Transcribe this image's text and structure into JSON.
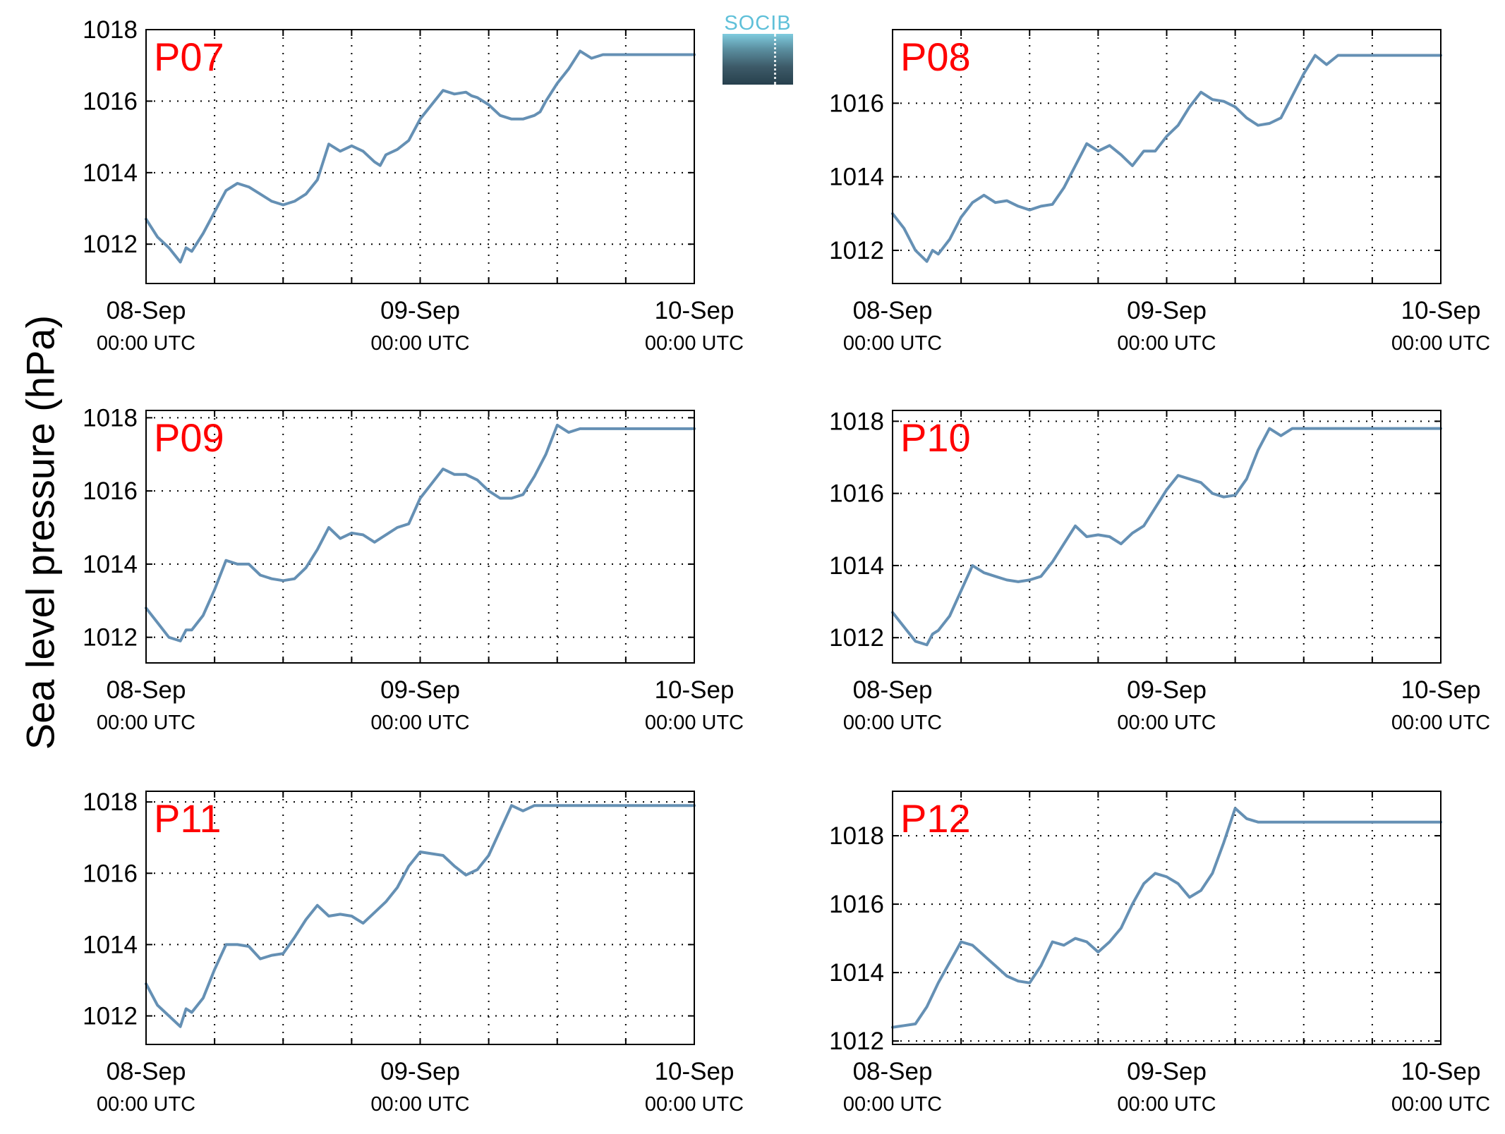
{
  "figure": {
    "ylabel": "Sea level pressure (hPa)",
    "logo_text": "SOCIB",
    "colors": {
      "line": "#6590b4",
      "panel_label": "#ff0000",
      "grid": "#000000"
    }
  },
  "chart_data": [
    {
      "type": "line",
      "title": "P07",
      "ylim": [
        1010.9,
        1018.0
      ],
      "yticks": [
        1012,
        1014,
        1016,
        1018
      ],
      "xlim": [
        0,
        48
      ],
      "xticks": [
        {
          "x": 0,
          "line1": "08-Sep",
          "line2": "00:00 UTC"
        },
        {
          "x": 24,
          "line1": "09-Sep",
          "line2": "00:00 UTC"
        },
        {
          "x": 48,
          "line1": "10-Sep",
          "line2": "00:00 UTC"
        }
      ],
      "grid": true,
      "series": [
        {
          "x": [
            0,
            1,
            2,
            3,
            3.5,
            4,
            5,
            6,
            7,
            8,
            9,
            10,
            11,
            12,
            13,
            14,
            15,
            16,
            17,
            18,
            19,
            20,
            20.5,
            21,
            22,
            23,
            24,
            25,
            26,
            27,
            28,
            28.5,
            29,
            30,
            31,
            32,
            33,
            34,
            34.5,
            35,
            36,
            37,
            38,
            39,
            40,
            41,
            42,
            43,
            44,
            45,
            46,
            47,
            48
          ],
          "y": [
            1012.7,
            1012.2,
            1011.9,
            1011.5,
            1011.9,
            1011.8,
            1012.3,
            1012.9,
            1013.5,
            1013.7,
            1013.6,
            1013.4,
            1013.2,
            1013.1,
            1013.2,
            1013.4,
            1013.8,
            1014.8,
            1014.6,
            1014.75,
            1014.6,
            1014.3,
            1014.2,
            1014.5,
            1014.65,
            1014.9,
            1015.5,
            1015.9,
            1016.3,
            1016.2,
            1016.25,
            1016.15,
            1016.1,
            1015.9,
            1015.6,
            1015.5,
            1015.5,
            1015.6,
            1015.7,
            1016.0,
            1016.5,
            1016.9,
            1017.4,
            1017.2,
            1017.3,
            1017.3,
            1017.3,
            1017.3,
            1017.3,
            1017.3,
            1017.3,
            1017.3,
            1017.3
          ]
        }
      ]
    },
    {
      "type": "line",
      "title": "P08",
      "ylim": [
        1011.1,
        1018.0
      ],
      "yticks": [
        1012,
        1014,
        1016
      ],
      "xlim": [
        0,
        48
      ],
      "xticks": [
        {
          "x": 0,
          "line1": "08-Sep",
          "line2": "00:00 UTC"
        },
        {
          "x": 24,
          "line1": "09-Sep",
          "line2": "00:00 UTC"
        },
        {
          "x": 48,
          "line1": "10-Sep",
          "line2": "00:00 UTC"
        }
      ],
      "grid": true,
      "series": [
        {
          "x": [
            0,
            1,
            2,
            3,
            3.5,
            4,
            5,
            6,
            7,
            8,
            9,
            10,
            11,
            12,
            13,
            14,
            15,
            16,
            17,
            18,
            19,
            20,
            21,
            22,
            23,
            24,
            25,
            26,
            27,
            28,
            29,
            30,
            31,
            32,
            33,
            34,
            35,
            36,
            37,
            38,
            39,
            40,
            41,
            42,
            43,
            44,
            45,
            46,
            47,
            48
          ],
          "y": [
            1013.0,
            1012.6,
            1012.0,
            1011.7,
            1012.0,
            1011.9,
            1012.3,
            1012.9,
            1013.3,
            1013.5,
            1013.3,
            1013.35,
            1013.2,
            1013.1,
            1013.2,
            1013.25,
            1013.7,
            1014.3,
            1014.9,
            1014.7,
            1014.85,
            1014.6,
            1014.3,
            1014.7,
            1014.7,
            1015.1,
            1015.4,
            1015.9,
            1016.3,
            1016.1,
            1016.05,
            1015.9,
            1015.6,
            1015.4,
            1015.45,
            1015.6,
            1016.2,
            1016.8,
            1017.3,
            1017.05,
            1017.3,
            1017.3,
            1017.3,
            1017.3,
            1017.3,
            1017.3,
            1017.3,
            1017.3,
            1017.3,
            1017.3
          ]
        }
      ]
    },
    {
      "type": "line",
      "title": "P09",
      "ylim": [
        1011.3,
        1018.2
      ],
      "yticks": [
        1012,
        1014,
        1016,
        1018
      ],
      "xlim": [
        0,
        48
      ],
      "xticks": [
        {
          "x": 0,
          "line1": "08-Sep",
          "line2": "00:00 UTC"
        },
        {
          "x": 24,
          "line1": "09-Sep",
          "line2": "00:00 UTC"
        },
        {
          "x": 48,
          "line1": "10-Sep",
          "line2": "00:00 UTC"
        }
      ],
      "grid": true,
      "series": [
        {
          "x": [
            0,
            1,
            2,
            3,
            3.5,
            4,
            5,
            6,
            7,
            8,
            9,
            10,
            11,
            12,
            13,
            14,
            15,
            16,
            17,
            18,
            19,
            20,
            21,
            22,
            23,
            24,
            25,
            26,
            27,
            28,
            29,
            30,
            31,
            32,
            33,
            34,
            35,
            36,
            37,
            38,
            39,
            40,
            41,
            42,
            43,
            44,
            45,
            46,
            47,
            48
          ],
          "y": [
            1012.8,
            1012.4,
            1012.0,
            1011.9,
            1012.2,
            1012.2,
            1012.6,
            1013.3,
            1014.1,
            1014.0,
            1014.0,
            1013.7,
            1013.6,
            1013.55,
            1013.6,
            1013.9,
            1014.4,
            1015.0,
            1014.7,
            1014.85,
            1014.8,
            1014.6,
            1014.8,
            1015.0,
            1015.1,
            1015.8,
            1016.2,
            1016.6,
            1016.45,
            1016.45,
            1016.3,
            1016.0,
            1015.8,
            1015.8,
            1015.9,
            1016.4,
            1017.0,
            1017.8,
            1017.6,
            1017.7,
            1017.7,
            1017.7,
            1017.7,
            1017.7,
            1017.7,
            1017.7,
            1017.7,
            1017.7,
            1017.7,
            1017.7
          ]
        }
      ]
    },
    {
      "type": "line",
      "title": "P10",
      "ylim": [
        1011.3,
        1018.3
      ],
      "yticks": [
        1012,
        1014,
        1016,
        1018
      ],
      "xlim": [
        0,
        48
      ],
      "xticks": [
        {
          "x": 0,
          "line1": "08-Sep",
          "line2": "00:00 UTC"
        },
        {
          "x": 24,
          "line1": "09-Sep",
          "line2": "00:00 UTC"
        },
        {
          "x": 48,
          "line1": "10-Sep",
          "line2": "00:00 UTC"
        }
      ],
      "grid": true,
      "series": [
        {
          "x": [
            0,
            1,
            2,
            3,
            3.5,
            4,
            5,
            6,
            7,
            8,
            9,
            10,
            11,
            12,
            13,
            14,
            15,
            16,
            17,
            18,
            19,
            20,
            21,
            22,
            23,
            24,
            25,
            26,
            27,
            28,
            29,
            30,
            31,
            32,
            33,
            34,
            35,
            36,
            37,
            38,
            39,
            40,
            41,
            42,
            43,
            44,
            45,
            46,
            47,
            48
          ],
          "y": [
            1012.7,
            1012.3,
            1011.9,
            1011.8,
            1012.1,
            1012.2,
            1012.6,
            1013.3,
            1014.0,
            1013.8,
            1013.7,
            1013.6,
            1013.55,
            1013.6,
            1013.7,
            1014.1,
            1014.6,
            1015.1,
            1014.8,
            1014.85,
            1014.8,
            1014.6,
            1014.9,
            1015.1,
            1015.6,
            1016.1,
            1016.5,
            1016.4,
            1016.3,
            1016.0,
            1015.9,
            1015.95,
            1016.4,
            1017.2,
            1017.8,
            1017.6,
            1017.8,
            1017.8,
            1017.8,
            1017.8,
            1017.8,
            1017.8,
            1017.8,
            1017.8,
            1017.8,
            1017.8,
            1017.8,
            1017.8,
            1017.8,
            1017.8
          ]
        }
      ]
    },
    {
      "type": "line",
      "title": "P11",
      "ylim": [
        1011.2,
        1018.3
      ],
      "yticks": [
        1012,
        1014,
        1016,
        1018
      ],
      "xlim": [
        0,
        48
      ],
      "xticks": [
        {
          "x": 0,
          "line1": "08-Sep",
          "line2": "00:00 UTC"
        },
        {
          "x": 24,
          "line1": "09-Sep",
          "line2": "00:00 UTC"
        },
        {
          "x": 48,
          "line1": "10-Sep",
          "line2": "00:00 UTC"
        }
      ],
      "grid": true,
      "series": [
        {
          "x": [
            0,
            1,
            2,
            3,
            3.5,
            4,
            5,
            6,
            7,
            8,
            9,
            10,
            11,
            12,
            13,
            14,
            15,
            16,
            17,
            18,
            19,
            20,
            21,
            22,
            23,
            24,
            25,
            26,
            27,
            28,
            29,
            30,
            31,
            32,
            33,
            34,
            35,
            36,
            37,
            38,
            39,
            40,
            41,
            42,
            43,
            44,
            45,
            46,
            47,
            48
          ],
          "y": [
            1012.9,
            1012.3,
            1012.0,
            1011.7,
            1012.2,
            1012.1,
            1012.5,
            1013.3,
            1014.0,
            1014.0,
            1013.95,
            1013.6,
            1013.7,
            1013.75,
            1014.2,
            1014.7,
            1015.1,
            1014.8,
            1014.85,
            1014.8,
            1014.6,
            1014.9,
            1015.2,
            1015.6,
            1016.2,
            1016.6,
            1016.55,
            1016.5,
            1016.2,
            1015.95,
            1016.1,
            1016.5,
            1017.2,
            1017.9,
            1017.75,
            1017.9,
            1017.9,
            1017.9,
            1017.9,
            1017.9,
            1017.9,
            1017.9,
            1017.9,
            1017.9,
            1017.9,
            1017.9,
            1017.9,
            1017.9,
            1017.9,
            1017.9
          ]
        }
      ]
    },
    {
      "type": "line",
      "title": "P12",
      "ylim": [
        1011.9,
        1019.3
      ],
      "yticks": [
        1012,
        1014,
        1016,
        1018
      ],
      "xlim": [
        0,
        48
      ],
      "xticks": [
        {
          "x": 0,
          "line1": "08-Sep",
          "line2": "00:00 UTC"
        },
        {
          "x": 24,
          "line1": "09-Sep",
          "line2": "00:00 UTC"
        },
        {
          "x": 48,
          "line1": "10-Sep",
          "line2": "00:00 UTC"
        }
      ],
      "grid": true,
      "series": [
        {
          "x": [
            0,
            1,
            2,
            3,
            4,
            5,
            6,
            7,
            8,
            9,
            10,
            11,
            12,
            13,
            14,
            15,
            16,
            17,
            18,
            19,
            20,
            21,
            22,
            23,
            24,
            25,
            26,
            27,
            28,
            29,
            30,
            31,
            32,
            33,
            34,
            35,
            36,
            37,
            38,
            39,
            40,
            41,
            42,
            43,
            44,
            45,
            46,
            47,
            48
          ],
          "y": [
            1012.4,
            1012.45,
            1012.5,
            1013.0,
            1013.7,
            1014.3,
            1014.9,
            1014.8,
            1014.5,
            1014.2,
            1013.9,
            1013.75,
            1013.7,
            1014.2,
            1014.9,
            1014.8,
            1015.0,
            1014.9,
            1014.6,
            1014.9,
            1015.3,
            1016.0,
            1016.6,
            1016.9,
            1016.8,
            1016.6,
            1016.2,
            1016.4,
            1016.9,
            1017.8,
            1018.8,
            1018.5,
            1018.4,
            1018.4,
            1018.4,
            1018.4,
            1018.4,
            1018.4,
            1018.4,
            1018.4,
            1018.4,
            1018.4,
            1018.4,
            1018.4,
            1018.4,
            1018.4,
            1018.4,
            1018.4,
            1018.4
          ]
        }
      ]
    }
  ]
}
